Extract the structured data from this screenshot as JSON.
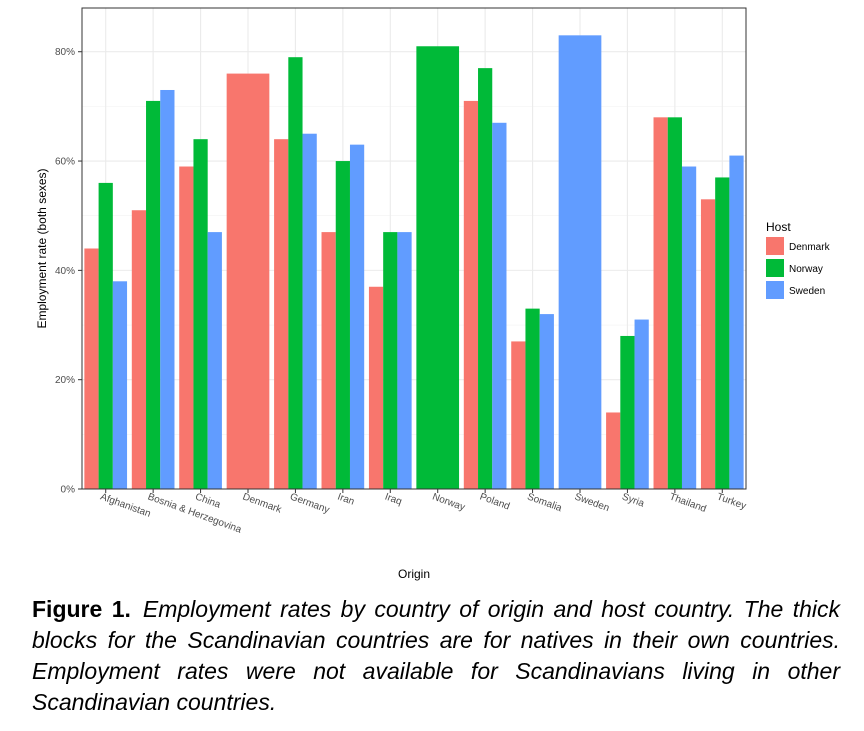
{
  "chart_data": {
    "type": "bar",
    "xlabel": "Origin",
    "ylabel": "Employment rate (both sexes)",
    "ylim": [
      0,
      0.88
    ],
    "y_ticks": [
      "0%",
      "20%",
      "40%",
      "60%",
      "80%"
    ],
    "y_tick_values": [
      0,
      0.2,
      0.4,
      0.6,
      0.8
    ],
    "grid": true,
    "legend_title": "Host",
    "legend_position": "right",
    "categories": [
      "Afghanistan",
      "Bosnia & Herzegovina",
      "China",
      "Denmark",
      "Germany",
      "Iran",
      "Iraq",
      "Norway",
      "Poland",
      "Somalia",
      "Sweden",
      "Syria",
      "Thailand",
      "Turkey"
    ],
    "series": [
      {
        "name": "Denmark",
        "color": "#F8766D",
        "values": [
          0.44,
          0.51,
          0.59,
          0.76,
          0.64,
          0.47,
          0.37,
          null,
          0.71,
          0.27,
          null,
          0.14,
          0.68,
          0.53
        ]
      },
      {
        "name": "Norway",
        "color": "#00BA38",
        "values": [
          0.56,
          0.71,
          0.64,
          null,
          0.79,
          0.6,
          0.47,
          0.81,
          0.77,
          0.33,
          null,
          0.28,
          0.68,
          0.57
        ]
      },
      {
        "name": "Sweden",
        "color": "#619CFF",
        "values": [
          0.38,
          0.73,
          0.47,
          null,
          0.65,
          0.63,
          0.47,
          null,
          0.67,
          0.32,
          0.83,
          0.31,
          0.59,
          0.61
        ]
      }
    ]
  },
  "caption": {
    "label": "Figure 1.",
    "text": "Employment rates by country of origin and host country. The thick blocks for the Scandinavian countries are for natives in their own countries. Employment rates were not available for Scandinavians living in other Scandinavian countries."
  }
}
